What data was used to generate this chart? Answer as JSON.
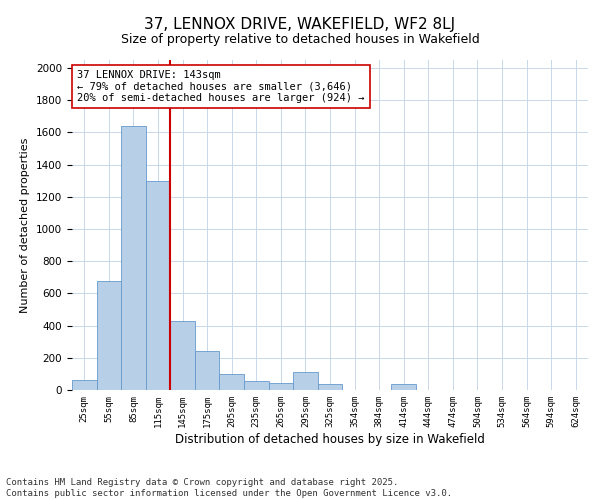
{
  "title1": "37, LENNOX DRIVE, WAKEFIELD, WF2 8LJ",
  "title2": "Size of property relative to detached houses in Wakefield",
  "xlabel": "Distribution of detached houses by size in Wakefield",
  "ylabel": "Number of detached properties",
  "categories": [
    "25sqm",
    "55sqm",
    "85sqm",
    "115sqm",
    "145sqm",
    "175sqm",
    "205sqm",
    "235sqm",
    "265sqm",
    "295sqm",
    "325sqm",
    "354sqm",
    "384sqm",
    "414sqm",
    "444sqm",
    "474sqm",
    "504sqm",
    "534sqm",
    "564sqm",
    "594sqm",
    "624sqm"
  ],
  "values": [
    65,
    680,
    1640,
    1300,
    430,
    240,
    100,
    55,
    45,
    110,
    40,
    0,
    0,
    35,
    0,
    0,
    0,
    0,
    0,
    0,
    0
  ],
  "bar_color": "#b8cfe8",
  "bar_edge_color": "#6699cc",
  "vline_color": "#cc0000",
  "annotation_text": "37 LENNOX DRIVE: 143sqm\n← 79% of detached houses are smaller (3,646)\n20% of semi-detached houses are larger (924) →",
  "annotation_box_color": "#ffffff",
  "annotation_box_edge": "#cc0000",
  "ylim": [
    0,
    2050
  ],
  "yticks": [
    0,
    200,
    400,
    600,
    800,
    1000,
    1200,
    1400,
    1600,
    1800,
    2000
  ],
  "background_color": "#ffffff",
  "grid_color": "#c8d8ea",
  "footer": "Contains HM Land Registry data © Crown copyright and database right 2025.\nContains public sector information licensed under the Open Government Licence v3.0.",
  "title_fontsize": 11,
  "subtitle_fontsize": 9,
  "annotation_fontsize": 7.5,
  "footer_fontsize": 6.5,
  "ylabel_fontsize": 8,
  "xlabel_fontsize": 8.5
}
